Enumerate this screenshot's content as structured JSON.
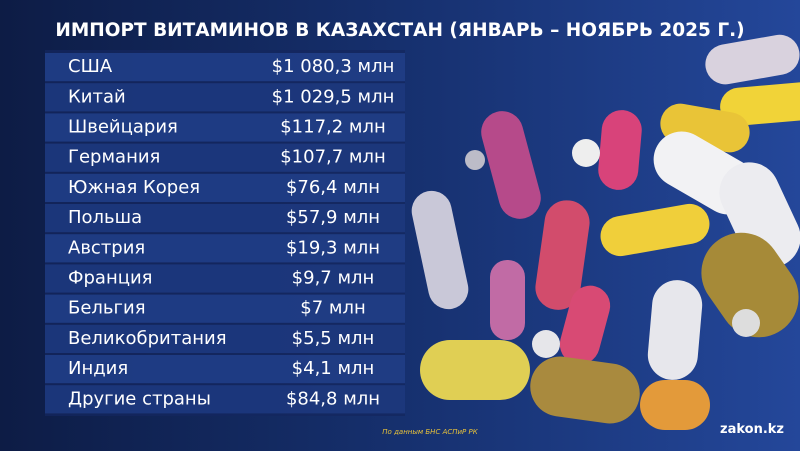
{
  "header": {
    "title": "ИМПОРТ ВИТАМИНОВ В КАЗАХСТАН (ЯНВАРЬ – НОЯБРЬ 2025 Г.)"
  },
  "table": {
    "rows": [
      [
        "США",
        "$1 080,3 млн"
      ],
      [
        "Китай",
        "$1 029,5 млн"
      ],
      [
        "Швейцария",
        "$117,2 млн"
      ],
      [
        "Германия",
        "$107,7 млн"
      ],
      [
        "Южная Корея",
        "$76,4 млн"
      ],
      [
        "Польша",
        "$57,9 млн"
      ],
      [
        "Австрия",
        "$19,3 млн"
      ],
      [
        "Франция",
        "$9,7 млн"
      ],
      [
        "Бельгия",
        "$7 млн"
      ],
      [
        "Великобритания",
        "$5,5 млн"
      ],
      [
        "Индия",
        "$4,1 млн"
      ],
      [
        "Другие страны",
        "$84,8 млн"
      ]
    ]
  },
  "footer": {
    "source": "По данным БНС АСПиР РК",
    "brand": "zakon.kz"
  }
}
